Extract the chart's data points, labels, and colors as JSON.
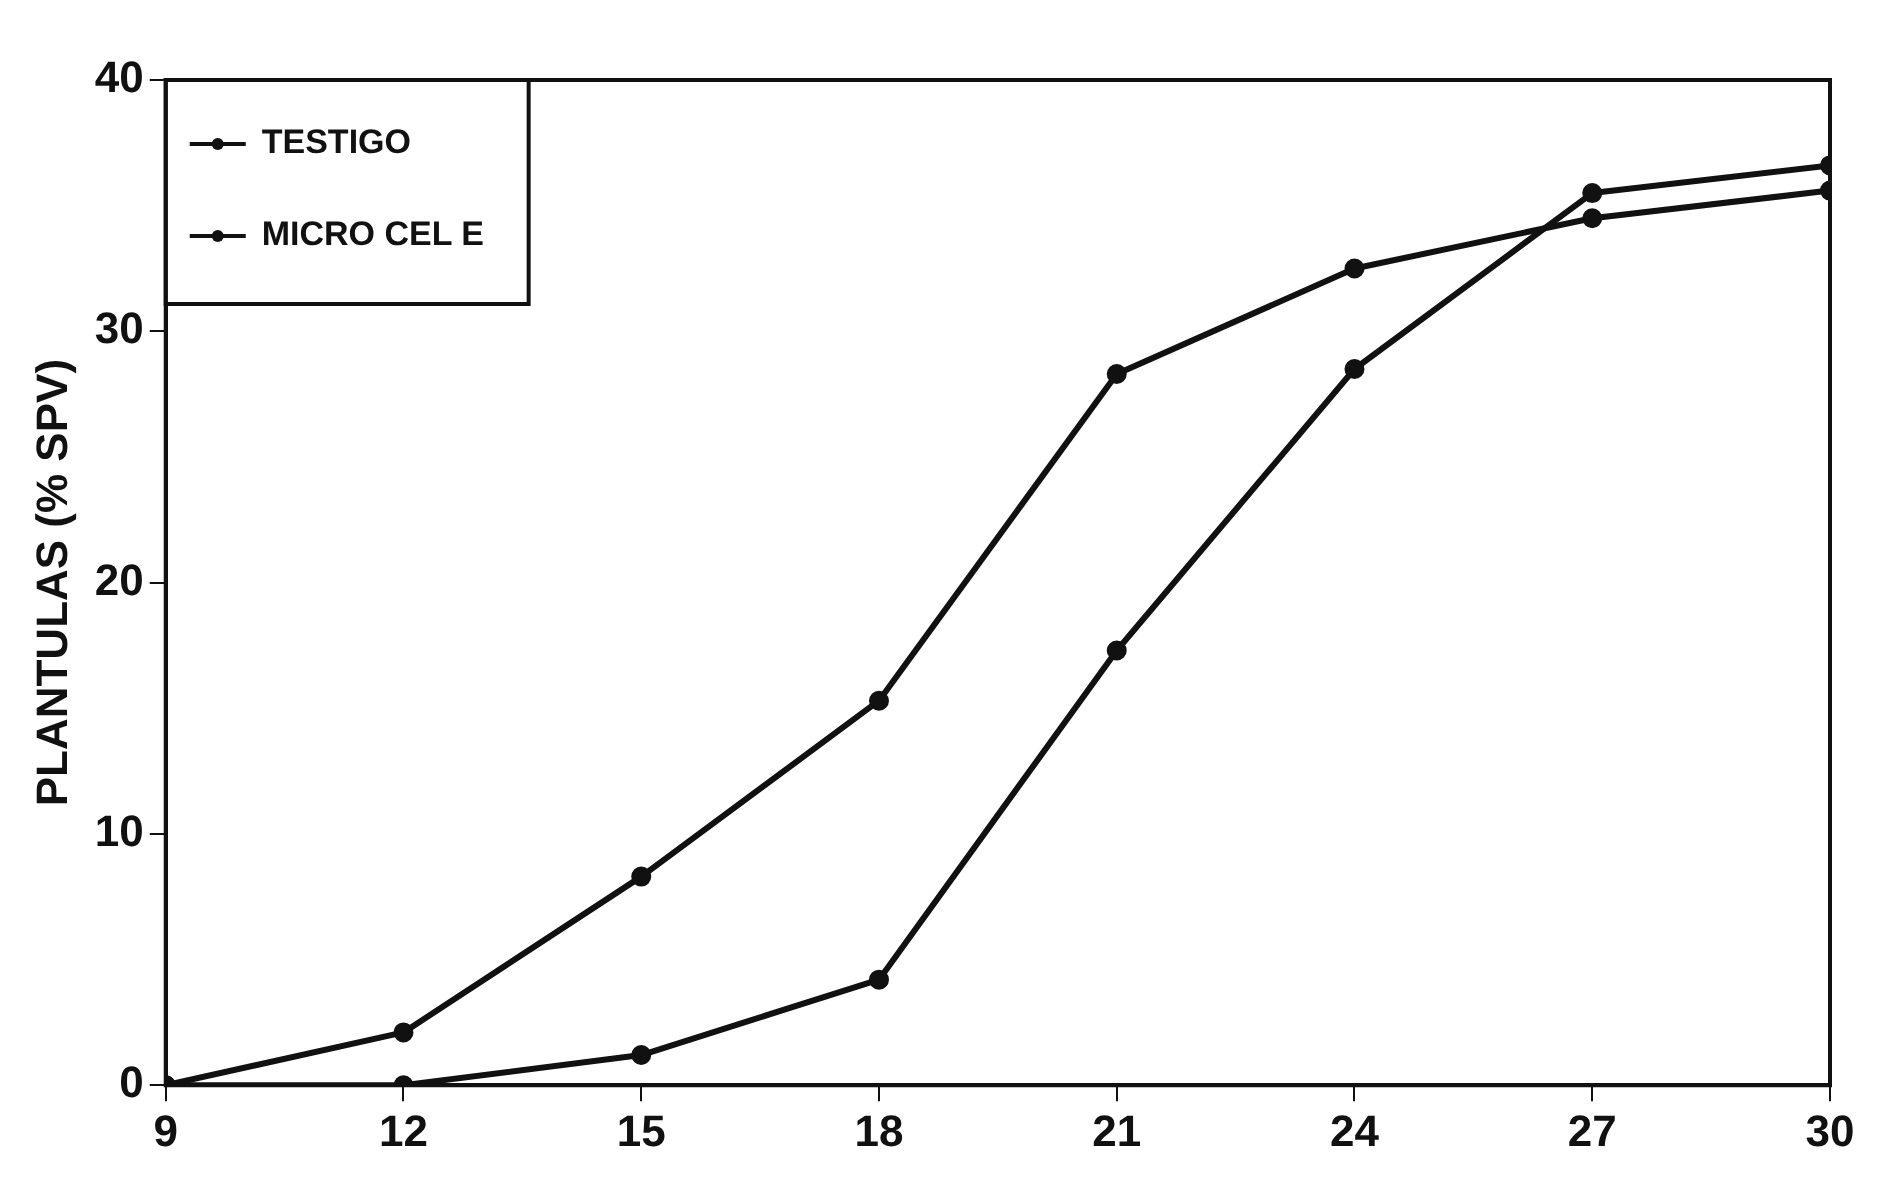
{
  "chart_data": {
    "type": "line",
    "ylabel": "PLANTULAS (% SPV)",
    "x": [
      9,
      12,
      15,
      18,
      21,
      24,
      27,
      30
    ],
    "series": [
      {
        "name": "TESTIGO",
        "color": "#111111",
        "values": [
          0,
          2.1,
          8.3,
          15.3,
          28.3,
          32.5,
          34.5,
          35.6
        ]
      },
      {
        "name": "MICRO CEL E",
        "color": "#111111",
        "values": [
          0,
          0,
          1.2,
          4.2,
          17.3,
          28.5,
          35.5,
          36.6
        ]
      }
    ],
    "xlim": [
      9,
      30
    ],
    "xticks": [
      9,
      12,
      15,
      18,
      21,
      24,
      27,
      30
    ],
    "ylim": [
      0,
      40
    ],
    "yticks": [
      0,
      10,
      20,
      30,
      40
    ],
    "grid": false,
    "legend": "top left",
    "marker": "circle",
    "line_style": "solid"
  }
}
